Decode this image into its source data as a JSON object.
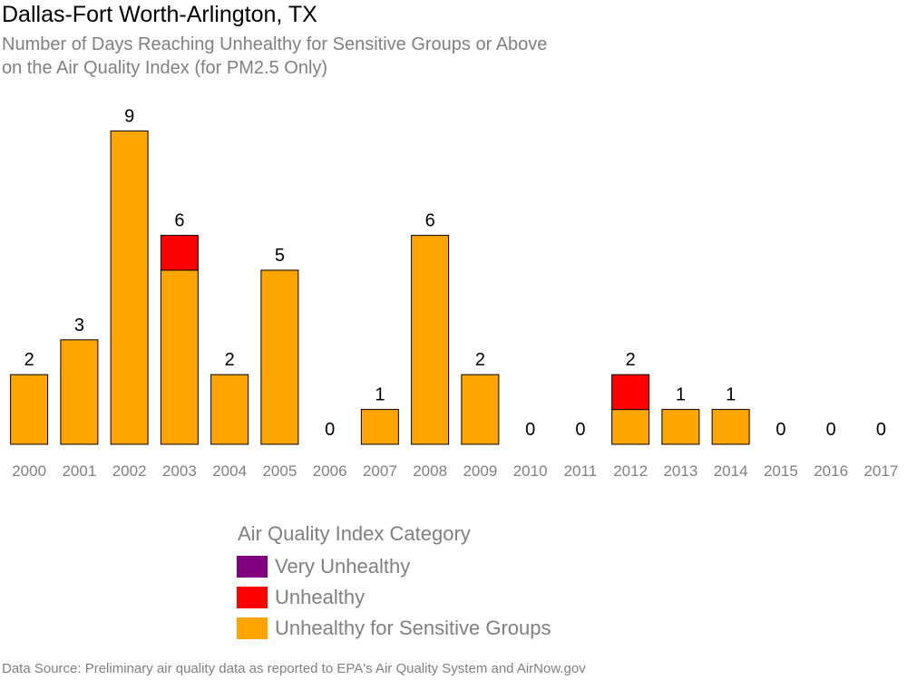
{
  "header": {
    "title": "Dallas-Fort Worth-Arlington, TX",
    "subtitle_line1": "Number of Days Reaching Unhealthy for Sensitive Groups or Above",
    "subtitle_line2": "on the Air Quality Index (for PM2.5 Only)"
  },
  "legend": {
    "title": "Air Quality Index Category",
    "items": [
      {
        "label": "Very Unhealthy",
        "color": "#800080"
      },
      {
        "label": "Unhealthy",
        "color": "#ff0000"
      },
      {
        "label": "Unhealthy for Sensitive Groups",
        "color": "#ffa500"
      }
    ]
  },
  "footer": {
    "source": "Data Source: Preliminary air quality data as reported to EPA's Air Quality System and AirNow.gov"
  },
  "chart_data": {
    "type": "bar",
    "stacked": true,
    "categories": [
      "2000",
      "2001",
      "2002",
      "2003",
      "2004",
      "2005",
      "2006",
      "2007",
      "2008",
      "2009",
      "2010",
      "2011",
      "2012",
      "2013",
      "2014",
      "2015",
      "2016",
      "2017"
    ],
    "series": [
      {
        "name": "Unhealthy for Sensitive Groups",
        "color": "#ffa500",
        "values": [
          2,
          3,
          9,
          5,
          2,
          5,
          0,
          1,
          6,
          2,
          0,
          0,
          1,
          1,
          1,
          0,
          0,
          0
        ]
      },
      {
        "name": "Unhealthy",
        "color": "#ff0000",
        "values": [
          0,
          0,
          0,
          1,
          0,
          0,
          0,
          0,
          0,
          0,
          0,
          0,
          1,
          0,
          0,
          0,
          0,
          0
        ]
      },
      {
        "name": "Very Unhealthy",
        "color": "#800080",
        "values": [
          0,
          0,
          0,
          0,
          0,
          0,
          0,
          0,
          0,
          0,
          0,
          0,
          0,
          0,
          0,
          0,
          0,
          0
        ]
      }
    ],
    "totals": [
      2,
      3,
      9,
      6,
      2,
      5,
      0,
      1,
      6,
      2,
      0,
      0,
      2,
      1,
      1,
      0,
      0,
      0
    ],
    "ylim": [
      0,
      9
    ],
    "grid": false,
    "legend_position": "bottom"
  }
}
